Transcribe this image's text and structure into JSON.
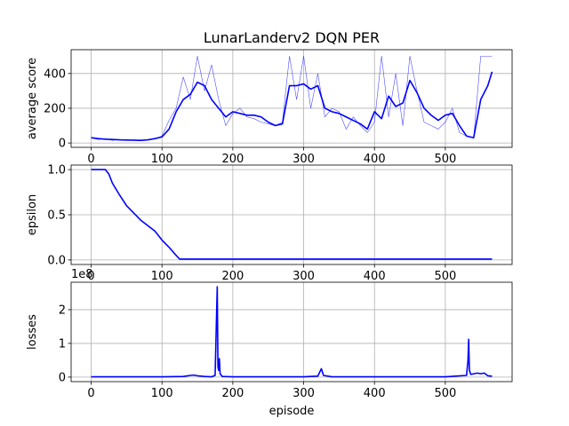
{
  "chart_data": [
    {
      "type": "line",
      "title": "LunarLanderv2 DQN PER",
      "ylabel": "average score",
      "grid": true,
      "x": [
        0,
        10,
        20,
        30,
        40,
        50,
        60,
        70,
        80,
        90,
        100,
        110,
        120,
        130,
        140,
        150,
        160,
        170,
        180,
        190,
        200,
        210,
        220,
        230,
        240,
        250,
        260,
        270,
        280,
        290,
        300,
        310,
        320,
        330,
        340,
        350,
        360,
        370,
        380,
        390,
        400,
        410,
        420,
        430,
        440,
        450,
        460,
        470,
        480,
        490,
        500,
        510,
        520,
        530,
        540,
        550,
        560,
        566
      ],
      "series": [
        {
          "color": "#0000ff",
          "width": 0.6,
          "opacity": 0.7,
          "values": [
            30,
            20,
            25,
            15,
            20,
            18,
            15,
            12,
            20,
            25,
            40,
            130,
            200,
            380,
            250,
            500,
            300,
            450,
            250,
            100,
            170,
            200,
            150,
            140,
            120,
            110,
            100,
            120,
            500,
            250,
            500,
            200,
            400,
            150,
            200,
            180,
            80,
            150,
            100,
            60,
            120,
            500,
            150,
            400,
            100,
            500,
            300,
            120,
            100,
            80,
            120,
            200,
            60,
            40,
            30,
            500,
            500,
            500
          ]
        },
        {
          "color": "#0000ff",
          "width": 1.6,
          "opacity": 1,
          "values": [
            30,
            25,
            22,
            20,
            18,
            17,
            16,
            15,
            18,
            25,
            35,
            80,
            180,
            250,
            280,
            350,
            330,
            250,
            200,
            150,
            180,
            170,
            160,
            160,
            150,
            120,
            100,
            110,
            330,
            330,
            340,
            310,
            330,
            200,
            180,
            170,
            150,
            130,
            110,
            80,
            180,
            140,
            270,
            210,
            230,
            360,
            290,
            200,
            160,
            130,
            160,
            170,
            100,
            40,
            30,
            250,
            330,
            410
          ]
        }
      ],
      "xlim": [
        -28.3,
        594.3
      ],
      "xticks": [
        0,
        100,
        200,
        300,
        400,
        500
      ],
      "ylim": [
        -25,
        537
      ],
      "yticks": [
        0,
        200,
        400
      ]
    },
    {
      "type": "line",
      "ylabel": "epsilon",
      "grid": true,
      "x": [
        0,
        10,
        20,
        25,
        30,
        40,
        50,
        60,
        70,
        80,
        90,
        100,
        110,
        120,
        125,
        200,
        300,
        400,
        500,
        566
      ],
      "series": [
        {
          "color": "#0000ff",
          "width": 1.6,
          "opacity": 1,
          "values": [
            1,
            1,
            1,
            0.95,
            0.85,
            0.72,
            0.6,
            0.52,
            0.44,
            0.38,
            0.32,
            0.22,
            0.14,
            0.05,
            0.01,
            0.01,
            0.01,
            0.01,
            0.01,
            0.01
          ]
        }
      ],
      "xlim": [
        -28.3,
        594.3
      ],
      "xticks": [
        0,
        100,
        200,
        300,
        400,
        500
      ],
      "ylim": [
        -0.05,
        1.05
      ],
      "yticks": [
        0.0,
        0.5,
        1.0
      ]
    },
    {
      "type": "line",
      "ylabel": "losses",
      "xlabel": "episode",
      "y_offset_label": "1e8",
      "grid": true,
      "x": [
        0,
        100,
        130,
        140,
        145,
        150,
        160,
        170,
        175,
        178,
        179,
        180,
        181,
        182,
        185,
        200,
        300,
        320,
        325,
        328,
        340,
        500,
        530,
        532,
        533,
        534,
        536,
        545,
        550,
        555,
        560,
        566
      ],
      "series": [
        {
          "color": "#0000ff",
          "width": 1.6,
          "opacity": 1,
          "values": [
            0.01,
            0.01,
            0.02,
            0.05,
            0.06,
            0.04,
            0.02,
            0.01,
            0.05,
            2.68,
            0.3,
            0.2,
            0.55,
            0.1,
            0.02,
            0.01,
            0.01,
            0.03,
            0.25,
            0.05,
            0.01,
            0.01,
            0.05,
            0.5,
            1.12,
            0.2,
            0.08,
            0.12,
            0.1,
            0.12,
            0.04,
            0.03
          ]
        }
      ],
      "xlim": [
        -28.3,
        594.3
      ],
      "xticks": [
        0,
        100,
        200,
        300,
        400,
        500
      ],
      "ylim": [
        -0.134,
        2.814
      ],
      "yticks": [
        0,
        1,
        2
      ]
    }
  ]
}
